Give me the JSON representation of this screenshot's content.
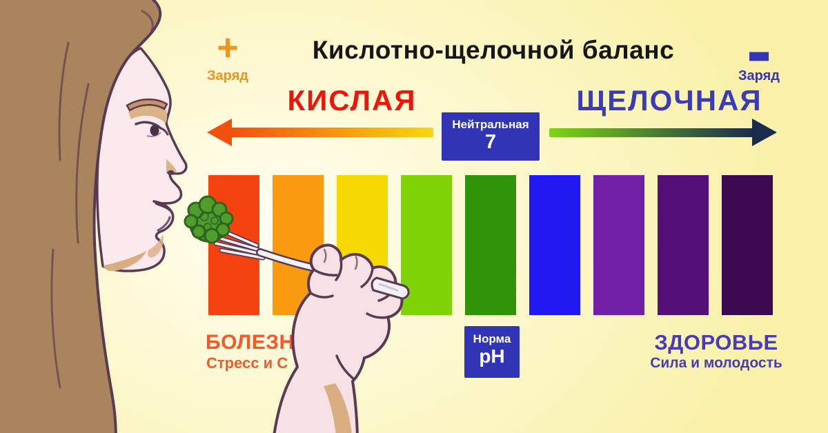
{
  "palette": {
    "background": "#F9F1A9",
    "glow": "#FFFEF2",
    "title_color": "#161616",
    "positive_color": "#F0941C",
    "negative_color": "#3336B8",
    "acidic_color": "#EE150A",
    "alkaline_color": "#3B3BBA",
    "box_blue": "#3134B5",
    "disease_color": "#F2592B",
    "health_color": "#463CB5",
    "arrow_left_gradient": [
      "#F1500F",
      "#F8D80E"
    ],
    "arrow_right_gradient": [
      "#7FD414",
      "#1B2B4E"
    ]
  },
  "header": {
    "title": "Кислотно-щелочной баланс",
    "charge_positive": {
      "symbol": "+",
      "label": "Заряд"
    },
    "charge_negative": {
      "symbol": "−",
      "label": "Заряд"
    }
  },
  "scale": {
    "acidic_label": "КИСЛАЯ",
    "alkaline_label": "ЩЕЛОЧНАЯ",
    "neutral_box": {
      "label": "Нейтральная",
      "value": "7"
    }
  },
  "ph_bars": [
    "#F5430F",
    "#F89B10",
    "#F6D805",
    "#7ED405",
    "#2F9408",
    "#2019F0",
    "#7120A6",
    "#551078",
    "#3B0A50"
  ],
  "footer": {
    "disease": {
      "title": "БОЛЕЗНИ",
      "subtitle": "Стресс и С"
    },
    "norm_box": {
      "label": "Норма",
      "value": "pH"
    },
    "health": {
      "title": "ЗДОРОВЬЕ",
      "subtitle": "Сила и молодость"
    }
  }
}
